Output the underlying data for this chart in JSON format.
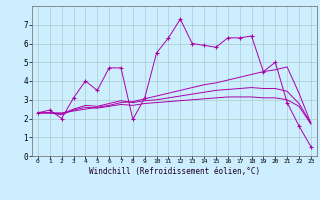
{
  "background_color": "#cceeff",
  "line_color": "#aa00aa",
  "grid_color": "#aacccc",
  "xlabel": "Windchill (Refroidissement éolien,°C)",
  "xlim": [
    -0.5,
    23.5
  ],
  "ylim": [
    0,
    8
  ],
  "xticks": [
    0,
    1,
    2,
    3,
    4,
    5,
    6,
    7,
    8,
    9,
    10,
    11,
    12,
    13,
    14,
    15,
    16,
    17,
    18,
    19,
    20,
    21,
    22,
    23
  ],
  "yticks": [
    0,
    1,
    2,
    3,
    4,
    5,
    6,
    7
  ],
  "main_series": [
    2.3,
    2.45,
    2.0,
    3.1,
    4.0,
    3.5,
    4.7,
    4.7,
    1.95,
    3.1,
    5.5,
    6.3,
    7.3,
    6.0,
    5.9,
    5.8,
    6.3,
    6.3,
    6.4,
    4.5,
    5.0,
    2.85,
    1.6,
    0.5
  ],
  "trend1": [
    2.3,
    2.3,
    2.3,
    2.4,
    2.5,
    2.6,
    2.7,
    2.85,
    2.9,
    3.05,
    3.2,
    3.35,
    3.5,
    3.65,
    3.8,
    3.9,
    4.05,
    4.2,
    4.35,
    4.5,
    4.6,
    4.75,
    3.35,
    1.75
  ],
  "trend2": [
    2.3,
    2.3,
    2.25,
    2.5,
    2.7,
    2.65,
    2.8,
    2.95,
    2.85,
    2.95,
    3.0,
    3.1,
    3.2,
    3.3,
    3.4,
    3.5,
    3.55,
    3.6,
    3.65,
    3.6,
    3.6,
    3.45,
    2.8,
    1.75
  ],
  "trend3": [
    2.3,
    2.3,
    2.2,
    2.45,
    2.6,
    2.55,
    2.65,
    2.75,
    2.7,
    2.8,
    2.85,
    2.9,
    2.95,
    3.0,
    3.05,
    3.1,
    3.15,
    3.15,
    3.15,
    3.1,
    3.1,
    3.0,
    2.65,
    1.7
  ]
}
